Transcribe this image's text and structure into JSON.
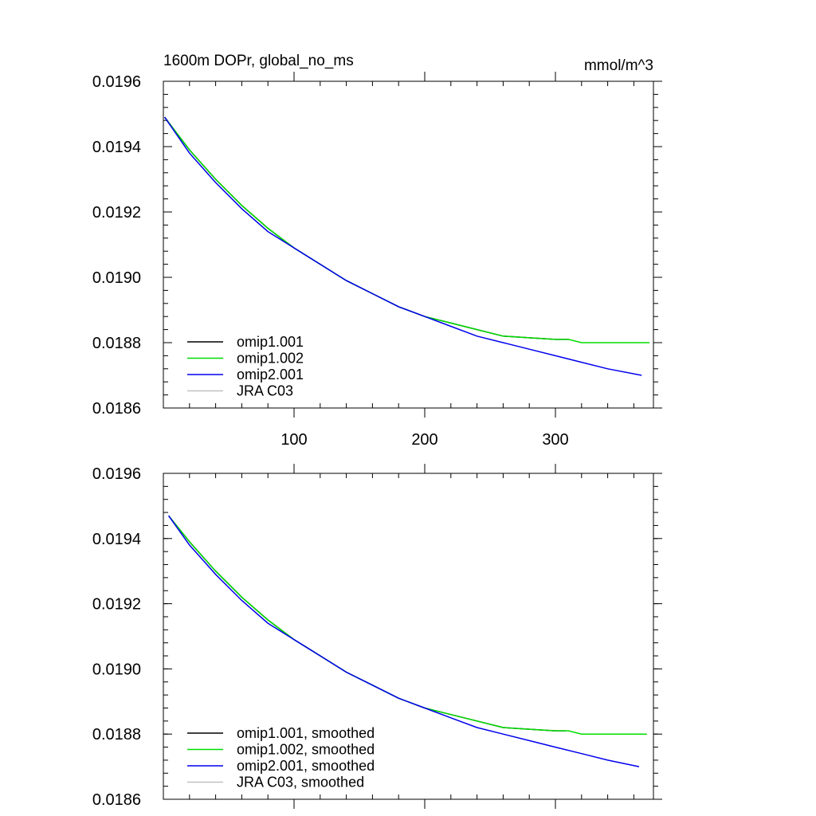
{
  "chart_data": [
    {
      "type": "line",
      "title": "1600m DOPr, global_no_ms",
      "units": "mmol/m^3",
      "xlim": [
        0,
        375
      ],
      "ylim": [
        0.0186,
        0.0196
      ],
      "x_ticks": [
        100,
        200,
        300
      ],
      "x_tick_labels": [
        "100",
        "200",
        "300"
      ],
      "y_ticks": [
        0.0186,
        0.0188,
        0.019,
        0.0192,
        0.0194,
        0.0196
      ],
      "y_tick_labels": [
        "0.0186",
        "0.0188",
        "0.0190",
        "0.0192",
        "0.0194",
        "0.0196"
      ],
      "legend_position": "bottom-left",
      "series": [
        {
          "name": "omip1.001",
          "color": "#000000",
          "x": [
            1,
            20,
            40,
            60,
            80,
            100,
            120,
            140,
            160,
            180,
            200,
            220,
            240,
            260,
            280,
            300,
            310
          ],
          "y": [
            0.01949,
            0.01939,
            0.0193,
            0.01922,
            0.01915,
            0.01909,
            0.01904,
            0.01899,
            0.01895,
            0.01891,
            0.01888,
            0.01886,
            0.01884,
            0.01882,
            0.018815,
            0.01881,
            0.01881
          ]
        },
        {
          "name": "omip1.002",
          "color": "#00dd00",
          "x": [
            1,
            20,
            40,
            60,
            80,
            100,
            120,
            140,
            160,
            180,
            200,
            220,
            240,
            260,
            280,
            300,
            310,
            320,
            330,
            340,
            350,
            360,
            372
          ],
          "y": [
            0.01949,
            0.01939,
            0.0193,
            0.01922,
            0.01915,
            0.01909,
            0.01904,
            0.01899,
            0.01895,
            0.01891,
            0.01888,
            0.01886,
            0.01884,
            0.01882,
            0.018815,
            0.01881,
            0.01881,
            0.0188,
            0.0188,
            0.0188,
            0.0188,
            0.0188,
            0.0188
          ]
        },
        {
          "name": "omip2.001",
          "color": "#0000ee",
          "x": [
            1,
            20,
            40,
            60,
            80,
            100,
            120,
            140,
            160,
            180,
            200,
            220,
            240,
            260,
            280,
            300,
            320,
            340,
            366
          ],
          "y": [
            0.01949,
            0.01938,
            0.01929,
            0.01921,
            0.01914,
            0.01909,
            0.01904,
            0.01899,
            0.01895,
            0.01891,
            0.01888,
            0.01885,
            0.01882,
            0.0188,
            0.01878,
            0.01876,
            0.01874,
            0.01872,
            0.0187
          ]
        },
        {
          "name": "JRA C03",
          "color": "#c0c0c0",
          "x": [],
          "y": []
        }
      ]
    },
    {
      "type": "line",
      "title": "",
      "units": "",
      "xlim": [
        0,
        375
      ],
      "ylim": [
        0.0186,
        0.0196
      ],
      "x_ticks": [
        100,
        200,
        300
      ],
      "x_tick_labels": [
        "",
        "",
        ""
      ],
      "y_ticks": [
        0.0186,
        0.0188,
        0.019,
        0.0192,
        0.0194,
        0.0196
      ],
      "y_tick_labels": [
        "0.0186",
        "0.0188",
        "0.0190",
        "0.0192",
        "0.0194",
        "0.0196"
      ],
      "legend_position": "bottom-left",
      "series": [
        {
          "name": "omip1.001, smoothed",
          "color": "#000000",
          "x": [
            4,
            20,
            40,
            60,
            80,
            100,
            120,
            140,
            160,
            180,
            200,
            220,
            240,
            260,
            280,
            300,
            308
          ],
          "y": [
            0.01947,
            0.01939,
            0.0193,
            0.01922,
            0.01915,
            0.01909,
            0.01904,
            0.01899,
            0.01895,
            0.01891,
            0.01888,
            0.01886,
            0.01884,
            0.01882,
            0.018815,
            0.01881,
            0.01881
          ]
        },
        {
          "name": "omip1.002, smoothed",
          "color": "#00dd00",
          "x": [
            4,
            20,
            40,
            60,
            80,
            100,
            120,
            140,
            160,
            180,
            200,
            220,
            240,
            260,
            280,
            300,
            310,
            320,
            330,
            340,
            350,
            360,
            370
          ],
          "y": [
            0.01947,
            0.01939,
            0.0193,
            0.01922,
            0.01915,
            0.01909,
            0.01904,
            0.01899,
            0.01895,
            0.01891,
            0.01888,
            0.01886,
            0.01884,
            0.01882,
            0.018815,
            0.01881,
            0.01881,
            0.0188,
            0.0188,
            0.0188,
            0.0188,
            0.0188,
            0.0188
          ]
        },
        {
          "name": "omip2.001, smoothed",
          "color": "#0000ee",
          "x": [
            4,
            20,
            40,
            60,
            80,
            100,
            120,
            140,
            160,
            180,
            200,
            220,
            240,
            260,
            280,
            300,
            320,
            340,
            364
          ],
          "y": [
            0.01947,
            0.01938,
            0.01929,
            0.01921,
            0.01914,
            0.01909,
            0.01904,
            0.01899,
            0.01895,
            0.01891,
            0.01888,
            0.01885,
            0.01882,
            0.0188,
            0.01878,
            0.01876,
            0.01874,
            0.01872,
            0.0187
          ]
        },
        {
          "name": "JRA C03, smoothed",
          "color": "#c0c0c0",
          "x": [],
          "y": []
        }
      ]
    }
  ]
}
